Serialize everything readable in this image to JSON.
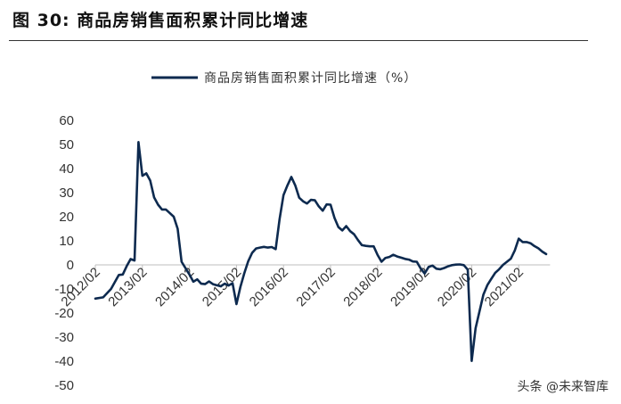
{
  "page": {
    "figure_title": "图 30: 商品房销售面积累计同比增速",
    "watermark": "头条 @未来智库"
  },
  "chart_data": {
    "type": "line",
    "xlabel": "",
    "ylabel": "",
    "ylim": [
      -50,
      60
    ],
    "yticks": [
      60,
      50,
      40,
      30,
      20,
      10,
      0,
      -10,
      -20,
      -30,
      -40,
      -50
    ],
    "xticks": [
      "2012/02",
      "2013/02",
      "2014/02",
      "2015/02",
      "2016/02",
      "2017/02",
      "2018/02",
      "2019/02",
      "2020/02",
      "2021/02"
    ],
    "legend": "top-center",
    "grid": false,
    "color": "#0d2a4f",
    "series": [
      {
        "name": "商品房销售面积累计同比增速（%）",
        "points": [
          [
            "2012/02",
            -14.0
          ],
          [
            "2012/04",
            -13.5
          ],
          [
            "2012/06",
            -10.0
          ],
          [
            "2012/08",
            -4.2
          ],
          [
            "2012/09",
            -4.0
          ],
          [
            "2012/10",
            -0.5
          ],
          [
            "2012/11",
            2.4
          ],
          [
            "2012/12",
            1.8
          ],
          [
            "2013/01",
            51.0
          ],
          [
            "2013/02",
            37.0
          ],
          [
            "2013/03",
            38.0
          ],
          [
            "2013/04",
            35.0
          ],
          [
            "2013/05",
            28.0
          ],
          [
            "2013/06",
            25.0
          ],
          [
            "2013/07",
            23.0
          ],
          [
            "2013/08",
            23.0
          ],
          [
            "2013/09",
            21.5
          ],
          [
            "2013/10",
            20.0
          ],
          [
            "2013/11",
            15.0
          ],
          [
            "2013/12",
            1.3
          ],
          [
            "2014/02",
            -4.0
          ],
          [
            "2014/03",
            -7.0
          ],
          [
            "2014/04",
            -6.0
          ],
          [
            "2014/05",
            -7.8
          ],
          [
            "2014/06",
            -8.0
          ],
          [
            "2014/07",
            -6.9
          ],
          [
            "2014/08",
            -8.0
          ],
          [
            "2014/09",
            -8.5
          ],
          [
            "2014/10",
            -8.9
          ],
          [
            "2014/11",
            -7.8
          ],
          [
            "2014/12",
            -8.6
          ],
          [
            "2015/01",
            -7.6
          ],
          [
            "2015/02",
            -16.3
          ],
          [
            "2015/03",
            -9.2
          ],
          [
            "2015/04",
            -3.5
          ],
          [
            "2015/05",
            1.5
          ],
          [
            "2015/06",
            5.0
          ],
          [
            "2015/07",
            6.8
          ],
          [
            "2015/08",
            7.2
          ],
          [
            "2015/09",
            7.5
          ],
          [
            "2015/10",
            7.2
          ],
          [
            "2015/11",
            7.4
          ],
          [
            "2015/12",
            6.5
          ],
          [
            "2016/01",
            19.0
          ],
          [
            "2016/02",
            29.0
          ],
          [
            "2016/03",
            33.0
          ],
          [
            "2016/04",
            36.5
          ],
          [
            "2016/05",
            33.0
          ],
          [
            "2016/06",
            27.9
          ],
          [
            "2016/07",
            26.4
          ],
          [
            "2016/08",
            25.5
          ],
          [
            "2016/09",
            27.0
          ],
          [
            "2016/10",
            26.8
          ],
          [
            "2016/11",
            24.3
          ],
          [
            "2016/12",
            22.5
          ],
          [
            "2017/01",
            25.1
          ],
          [
            "2017/02",
            25.0
          ],
          [
            "2017/03",
            19.5
          ],
          [
            "2017/04",
            15.7
          ],
          [
            "2017/05",
            14.3
          ],
          [
            "2017/06",
            16.1
          ],
          [
            "2017/07",
            14.0
          ],
          [
            "2017/08",
            12.7
          ],
          [
            "2017/09",
            10.3
          ],
          [
            "2017/10",
            8.2
          ],
          [
            "2017/11",
            7.9
          ],
          [
            "2017/12",
            7.7
          ],
          [
            "2018/01",
            7.7
          ],
          [
            "2018/02",
            4.1
          ],
          [
            "2018/03",
            1.3
          ],
          [
            "2018/04",
            2.9
          ],
          [
            "2018/05",
            3.3
          ],
          [
            "2018/06",
            4.2
          ],
          [
            "2018/07",
            3.5
          ],
          [
            "2018/08",
            3.0
          ],
          [
            "2018/09",
            2.5
          ],
          [
            "2018/10",
            2.2
          ],
          [
            "2018/11",
            1.4
          ],
          [
            "2018/12",
            1.3
          ],
          [
            "2019/01",
            -1.5
          ],
          [
            "2019/02",
            -3.6
          ],
          [
            "2019/03",
            -0.9
          ],
          [
            "2019/04",
            -0.3
          ],
          [
            "2019/05",
            -1.6
          ],
          [
            "2019/06",
            -1.8
          ],
          [
            "2019/07",
            -1.3
          ],
          [
            "2019/08",
            -0.6
          ],
          [
            "2019/09",
            -0.1
          ],
          [
            "2019/10",
            0.1
          ],
          [
            "2019/11",
            0.2
          ],
          [
            "2019/12",
            -0.1
          ],
          [
            "2020/01",
            -2.0
          ],
          [
            "2020/02",
            -39.9
          ],
          [
            "2020/03",
            -26.3
          ],
          [
            "2020/04",
            -19.3
          ],
          [
            "2020/05",
            -12.3
          ],
          [
            "2020/06",
            -8.4
          ],
          [
            "2020/07",
            -5.8
          ],
          [
            "2020/08",
            -3.3
          ],
          [
            "2020/09",
            -1.8
          ],
          [
            "2020/10",
            0.0
          ],
          [
            "2020/11",
            1.3
          ],
          [
            "2020/12",
            2.6
          ],
          [
            "2021/01",
            6.0
          ],
          [
            "2021/02",
            10.9
          ],
          [
            "2021/03",
            9.5
          ],
          [
            "2021/04",
            9.5
          ],
          [
            "2021/05",
            9.0
          ],
          [
            "2021/06",
            7.8
          ],
          [
            "2021/07",
            6.9
          ],
          [
            "2021/08",
            5.5
          ],
          [
            "2021/09",
            4.5
          ]
        ]
      }
    ]
  }
}
